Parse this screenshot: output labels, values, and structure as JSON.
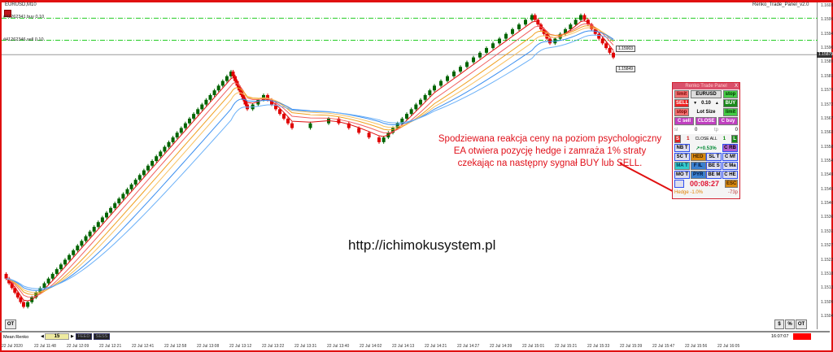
{
  "window": {
    "symbol": "EURUSD,M10",
    "ea_title": "Renko_Trade_Panel_v2.0"
  },
  "orders": [
    {
      "label": "#41262341 buy 0.10"
    },
    {
      "label": "#41262346 sell 0.10"
    }
  ],
  "price_axis": [
    "1.16035",
    "1.15990",
    "1.15945",
    "1.15900",
    "1.15855",
    "1.15810",
    "1.15765",
    "1.15720",
    "1.15675",
    "1.15630",
    "1.15585",
    "1.15540",
    "1.15495",
    "1.15450",
    "1.15405",
    "1.15360",
    "1.15315",
    "1.15270",
    "1.15225",
    "1.15180",
    "1.15135",
    "1.15090",
    "1.15045"
  ],
  "current_price": "1.15879",
  "price_boxes": [
    "1.15903",
    "1.15849"
  ],
  "time_axis": [
    "22 Jul 2020",
    "22 Jul 11:48",
    "22 Jul 12:09",
    "22 Jul 12:21",
    "22 Jul 12:41",
    "22 Jul 12:58",
    "22 Jul 13:08",
    "22 Jul 13:12",
    "22 Jul 13:22",
    "22 Jul 13:31",
    "22 Jul 13:40",
    "22 Jul 14:02",
    "22 Jul 14:13",
    "22 Jul 14:21",
    "22 Jul 14:27",
    "22 Jul 14:39",
    "22 Jul 15:01",
    "22 Jul 15:21",
    "22 Jul 15:33",
    "22 Jul 15:39",
    "22 Jul 15:47",
    "22 Jul 15:56",
    "22 Jul 16:05"
  ],
  "annotation": [
    "Spodziewana reakcja ceny na poziom psychologiczny",
    "EA otwiera pozycję hedge i zamraża 1% straty",
    "czekając na następny sygnał BUY lub SELL."
  ],
  "website": "http://ichimokusystem.pl",
  "panel": {
    "title": "Renko Trade Panel",
    "close": "X",
    "limit": "limit",
    "symbol": "EURUSD",
    "stop": "stop",
    "sell": "SELL",
    "lot": "0.10",
    "buy": "BUY",
    "lot_size": "Lot Size",
    "c_sell": "C sell",
    "close_btn": "CLOSE",
    "c_buy": "C buy",
    "sl": "sl",
    "sl_val": "0",
    "tp": "tp",
    "tp_val": "0",
    "s": "S",
    "s_count": "1",
    "close_all": "CLOSE ALL",
    "l_count": "1",
    "l": "L",
    "grid": [
      [
        "NB T",
        "↗+0.53%",
        "C RB"
      ],
      [
        "SC T",
        "HED",
        "SL T",
        "C Mf"
      ],
      [
        "MA T",
        "F IL",
        "BE S",
        "C Ma"
      ],
      [
        "MO T",
        "PYR",
        "BE M",
        "C HE"
      ]
    ],
    "timer": "00:08:27",
    "esc": "ESC",
    "hedge": "Hedge -1.0%",
    "pips": "-73p"
  },
  "footer": {
    "indicator": "Mean Renko",
    "value": "15",
    "feed": "FEED",
    "sess": "SESS",
    "clock": "16:07:07"
  },
  "buttons": {
    "ot": "OT",
    "dollar": "$",
    "percent": "%",
    "ot2": "OT"
  },
  "colors": {
    "bull": "#006400",
    "bear": "#e00000",
    "accent": "#e01010"
  }
}
